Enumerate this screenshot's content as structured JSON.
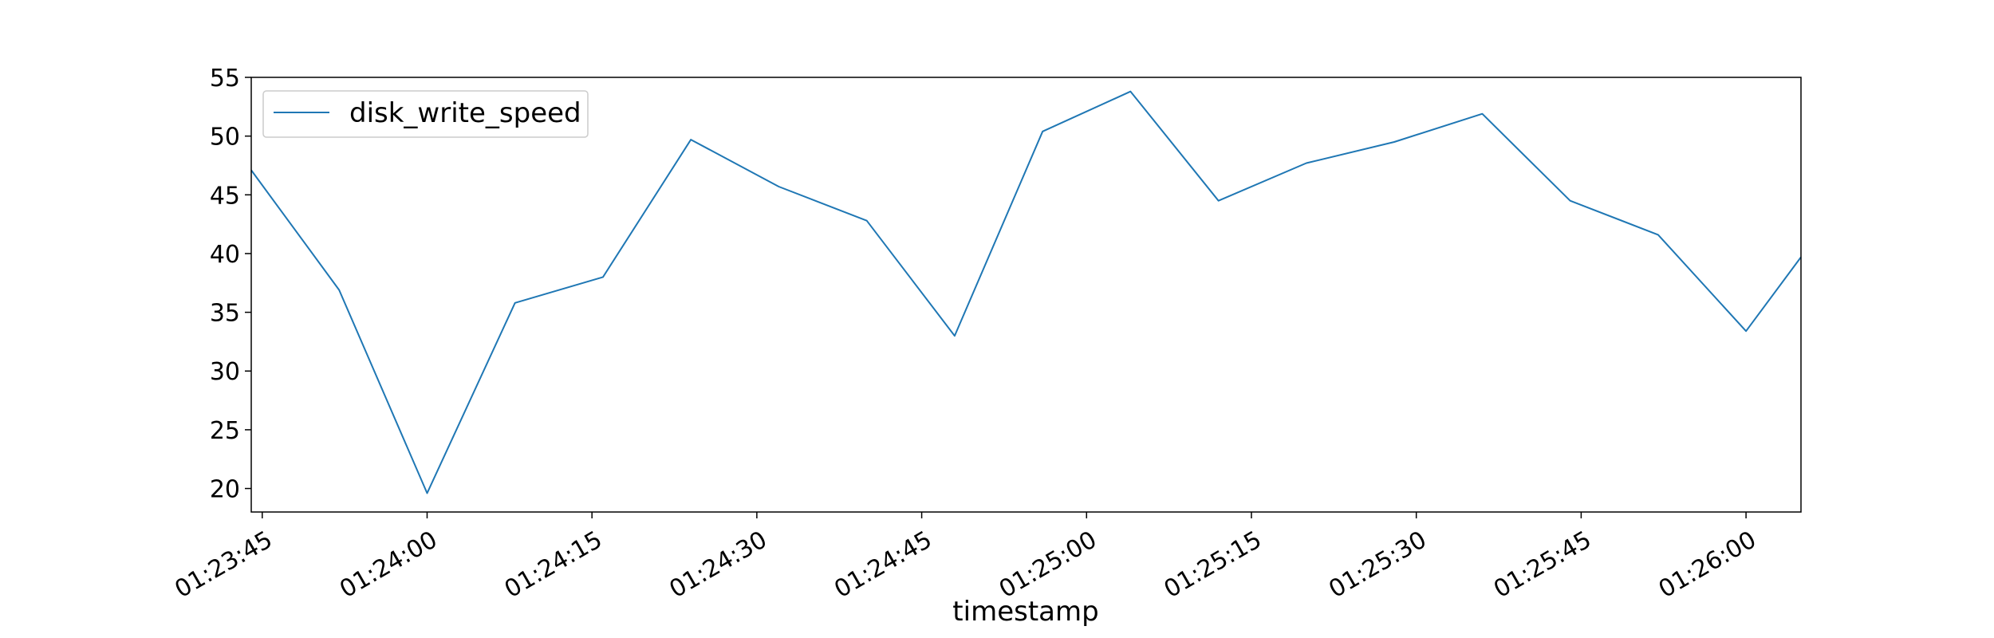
{
  "chart_data": {
    "type": "line",
    "title": "",
    "xlabel": "timestamp",
    "ylabel": "",
    "x_range": [
      "01:23:44",
      "01:26:05"
    ],
    "ylim": [
      18,
      55
    ],
    "x_ticks": [
      "01:23:45",
      "01:24:00",
      "01:24:15",
      "01:24:30",
      "01:24:45",
      "01:25:00",
      "01:25:15",
      "01:25:30",
      "01:25:45",
      "01:26:00"
    ],
    "y_ticks": [
      20,
      25,
      30,
      35,
      40,
      45,
      50,
      55
    ],
    "grid": false,
    "legend": "top-left",
    "series": [
      {
        "name": "disk_write_speed",
        "color": "#1f77b4",
        "points": [
          {
            "x": "01:23:44",
            "y": 47.1
          },
          {
            "x": "01:23:52",
            "y": 36.9
          },
          {
            "x": "01:24:00",
            "y": 19.6
          },
          {
            "x": "01:24:08",
            "y": 35.8
          },
          {
            "x": "01:24:16",
            "y": 38.0
          },
          {
            "x": "01:24:24",
            "y": 49.7
          },
          {
            "x": "01:24:32",
            "y": 45.7
          },
          {
            "x": "01:24:40",
            "y": 42.8
          },
          {
            "x": "01:24:48",
            "y": 33.0
          },
          {
            "x": "01:24:56",
            "y": 50.4
          },
          {
            "x": "01:25:04",
            "y": 53.8
          },
          {
            "x": "01:25:12",
            "y": 44.5
          },
          {
            "x": "01:25:20",
            "y": 47.7
          },
          {
            "x": "01:25:28",
            "y": 49.5
          },
          {
            "x": "01:25:36",
            "y": 51.9
          },
          {
            "x": "01:25:44",
            "y": 44.5
          },
          {
            "x": "01:25:52",
            "y": 41.6
          },
          {
            "x": "01:26:00",
            "y": 33.4
          },
          {
            "x": "01:26:05",
            "y": 39.7
          }
        ]
      }
    ]
  }
}
